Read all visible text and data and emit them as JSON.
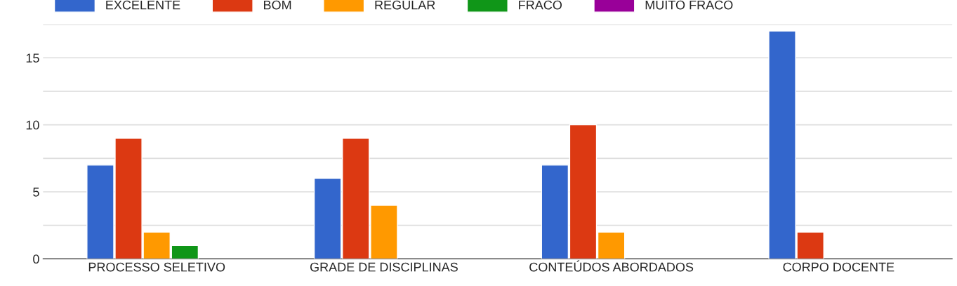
{
  "chart_data": {
    "type": "bar",
    "categories": [
      "PROCESSO SELETIVO",
      "GRADE DE DISCIPLINAS",
      "CONTEÚDOS ABORDADOS",
      "CORPO DOCENTE"
    ],
    "series": [
      {
        "name": "EXCELENTE",
        "color": "#3366cc",
        "values": [
          7,
          6,
          7,
          17
        ]
      },
      {
        "name": "BOM",
        "color": "#dc3912",
        "values": [
          9,
          9,
          10,
          2
        ]
      },
      {
        "name": "REGULAR",
        "color": "#ff9900",
        "values": [
          2,
          4,
          2,
          null
        ]
      },
      {
        "name": "FRACO",
        "color": "#109618",
        "values": [
          1,
          null,
          null,
          null
        ]
      },
      {
        "name": "MUITO FRACO",
        "color": "#990099",
        "values": [
          null,
          null,
          null,
          null
        ]
      }
    ],
    "ylim": [
      0,
      17.5
    ],
    "yticks": [
      0,
      {
        "value": 2.5,
        "label": null
      },
      5,
      {
        "value": 7.5,
        "label": null
      },
      10,
      {
        "value": 12.5,
        "label": null
      },
      15,
      {
        "value": 17.5,
        "label": null
      }
    ],
    "grid": "y",
    "legend": "top left"
  }
}
